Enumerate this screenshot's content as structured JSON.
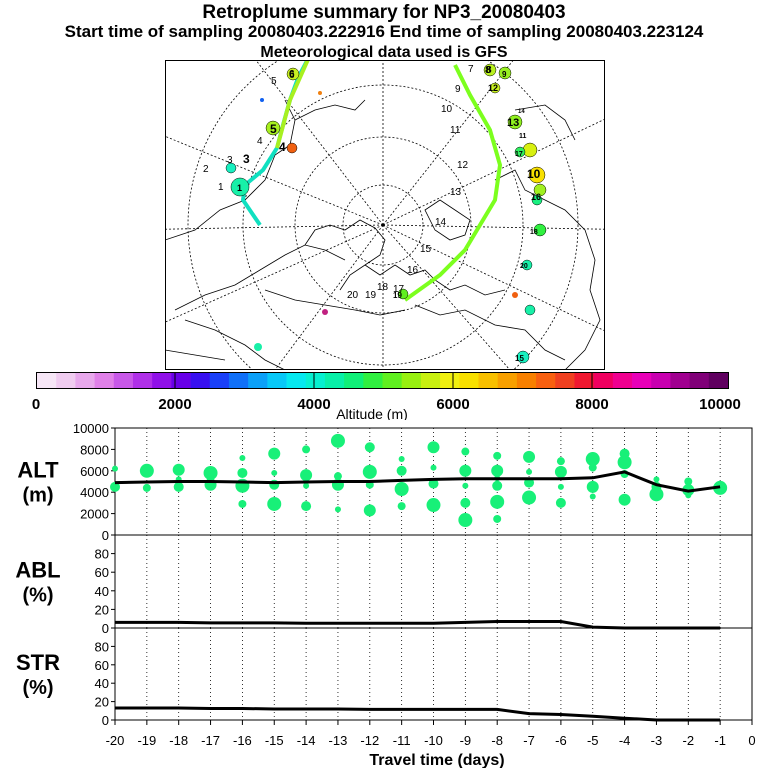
{
  "header": {
    "title": "Retroplume summary for NP3_20080403",
    "sampling": "Start time of sampling 20080403.222916     End time of sampling 20080403.223124",
    "met": "Meteorological data used is GFS"
  },
  "colors": {
    "trajectory": "#7cff1e",
    "clusters": "#18f078",
    "median_line": "#000000",
    "map_border": "#000000"
  },
  "map": {
    "day_labels": [
      "1",
      "2",
      "3",
      "4",
      "5",
      "6",
      "7",
      "8",
      "9",
      "10",
      "11",
      "12",
      "13",
      "14",
      "15",
      "16",
      "17",
      "18",
      "19",
      "20"
    ],
    "cluster_labels": [
      "1",
      "3",
      "4",
      "5",
      "6",
      "8",
      "9",
      "10",
      "11",
      "12",
      "13",
      "14",
      "15",
      "16",
      "17",
      "18",
      "19",
      "20"
    ]
  },
  "colorbar": {
    "label": "Altitude (m)",
    "ticks": [
      "0",
      "2000",
      "4000",
      "6000",
      "8000",
      "10000"
    ],
    "swatches": [
      "#f6e6f6",
      "#f0ccf0",
      "#e8a8ec",
      "#e080e8",
      "#c858e8",
      "#b030e8",
      "#9010e8",
      "#6800e8",
      "#3810f0",
      "#1a40f8",
      "#1070f8",
      "#0ca0f8",
      "#08c8f8",
      "#06e8f0",
      "#06f0d0",
      "#08f0a8",
      "#10f078",
      "#30f040",
      "#60f020",
      "#98f010",
      "#c8f010",
      "#f0f010",
      "#f8e000",
      "#f8c000",
      "#f8a000",
      "#f88000",
      "#f86010",
      "#f04020",
      "#f01830",
      "#f00060",
      "#f00090",
      "#e800b8",
      "#c800b0",
      "#a00090",
      "#800078",
      "#600060"
    ]
  },
  "chart_data": [
    {
      "type": "scatter",
      "id": "alt",
      "title": "",
      "ylabel": "ALT\n(m)",
      "ylabel_lines": [
        "ALT",
        "(m)"
      ],
      "xlabel": "Travel time (days)",
      "xlim": [
        -20,
        0
      ],
      "ylim": [
        0,
        10000
      ],
      "yticks": [
        "0",
        "2000",
        "4000",
        "6000",
        "8000",
        "10000"
      ],
      "xticks": [
        "-20",
        "-19",
        "-18",
        "-17",
        "-16",
        "-15",
        "-14",
        "-13",
        "-12",
        "-11",
        "-10",
        "-9",
        "-8",
        "-7",
        "-6",
        "-5",
        "-4",
        "-3",
        "-2",
        "-1",
        "0"
      ],
      "grid": "vertical dotted",
      "median_line": {
        "x": [
          -20,
          -19,
          -18,
          -17,
          -16,
          -15,
          -14,
          -13,
          -12,
          -11,
          -10,
          -9,
          -8,
          -7,
          -6,
          -5,
          -4,
          -3,
          -2,
          -1
        ],
        "y": [
          4900,
          4950,
          5000,
          5000,
          4950,
          4900,
          4950,
          5000,
          5000,
          5100,
          5200,
          5250,
          5250,
          5250,
          5250,
          5350,
          5900,
          4700,
          4100,
          4500
        ]
      },
      "series": [
        {
          "name": "clusters",
          "points": [
            [
              -20,
              6200
            ],
            [
              -20,
              4500
            ],
            [
              -19,
              6000
            ],
            [
              -19,
              4400
            ],
            [
              -18,
              6100
            ],
            [
              -18,
              5200
            ],
            [
              -18,
              4500
            ],
            [
              -17,
              5800
            ],
            [
              -17,
              5300
            ],
            [
              -17,
              4700
            ],
            [
              -16,
              7200
            ],
            [
              -16,
              5800
            ],
            [
              -16,
              4600
            ],
            [
              -16,
              2900
            ],
            [
              -15,
              7600
            ],
            [
              -15,
              5800
            ],
            [
              -15,
              4700
            ],
            [
              -15,
              2900
            ],
            [
              -14,
              8000
            ],
            [
              -14,
              5600
            ],
            [
              -14,
              4600
            ],
            [
              -14,
              2700
            ],
            [
              -13,
              8800
            ],
            [
              -13,
              5500
            ],
            [
              -13,
              4700
            ],
            [
              -13,
              2400
            ],
            [
              -12,
              8200
            ],
            [
              -12,
              5900
            ],
            [
              -12,
              4700
            ],
            [
              -12,
              2300
            ],
            [
              -11,
              7100
            ],
            [
              -11,
              6000
            ],
            [
              -11,
              4300
            ],
            [
              -11,
              2700
            ],
            [
              -10,
              8200
            ],
            [
              -10,
              6300
            ],
            [
              -10,
              4800
            ],
            [
              -10,
              2800
            ],
            [
              -9,
              7800
            ],
            [
              -9,
              6000
            ],
            [
              -9,
              4600
            ],
            [
              -9,
              3000
            ],
            [
              -9,
              1400
            ],
            [
              -8,
              7400
            ],
            [
              -8,
              6000
            ],
            [
              -8,
              5300
            ],
            [
              -8,
              4600
            ],
            [
              -8,
              3100
            ],
            [
              -8,
              1500
            ],
            [
              -7,
              7300
            ],
            [
              -7,
              5900
            ],
            [
              -7,
              4900
            ],
            [
              -7,
              3500
            ],
            [
              -6,
              6900
            ],
            [
              -6,
              5900
            ],
            [
              -6,
              4500
            ],
            [
              -6,
              3000
            ],
            [
              -5,
              7100
            ],
            [
              -5,
              6300
            ],
            [
              -5,
              4500
            ],
            [
              -5,
              3600
            ],
            [
              -4,
              7600
            ],
            [
              -4,
              6800
            ],
            [
              -4,
              5700
            ],
            [
              -4,
              3300
            ],
            [
              -3,
              5200
            ],
            [
              -3,
              4500
            ],
            [
              -3,
              3800
            ],
            [
              -2,
              5000
            ],
            [
              -2,
              4200
            ],
            [
              -2,
              3700
            ],
            [
              -1,
              4600
            ],
            [
              -1,
              4400
            ]
          ]
        }
      ]
    },
    {
      "type": "line",
      "id": "abl",
      "ylabel_lines": [
        "ABL",
        "(%)"
      ],
      "xlim": [
        -20,
        0
      ],
      "ylim": [
        0,
        100
      ],
      "yticks": [
        "0",
        "20",
        "40",
        "60",
        "80"
      ],
      "series": [
        {
          "name": "ABL fraction",
          "x": [
            -20,
            -19,
            -18,
            -17,
            -16,
            -15,
            -14,
            -13,
            -12,
            -11,
            -10,
            -9,
            -8,
            -7,
            -6,
            -5,
            -4,
            -3,
            -2,
            -1
          ],
          "y": [
            6,
            6,
            6,
            5.5,
            5.5,
            5.5,
            5,
            5,
            5,
            5,
            5,
            6,
            7,
            7,
            7,
            1,
            0,
            0,
            0,
            0
          ]
        }
      ]
    },
    {
      "type": "line",
      "id": "str",
      "ylabel_lines": [
        "STR",
        "(%)"
      ],
      "xlim": [
        -20,
        0
      ],
      "ylim": [
        0,
        100
      ],
      "yticks": [
        "0",
        "20",
        "40",
        "60",
        "80"
      ],
      "series": [
        {
          "name": "STR fraction",
          "x": [
            -20,
            -19,
            -18,
            -17,
            -16,
            -15,
            -14,
            -13,
            -12,
            -11,
            -10,
            -9,
            -8,
            -7,
            -6,
            -5,
            -4,
            -3,
            -2,
            -1
          ],
          "y": [
            13,
            13,
            13,
            12.5,
            12.5,
            12,
            12,
            12,
            11.5,
            11.5,
            11.5,
            11.5,
            11.5,
            7,
            6,
            4,
            2,
            0,
            0,
            0
          ]
        }
      ]
    }
  ]
}
